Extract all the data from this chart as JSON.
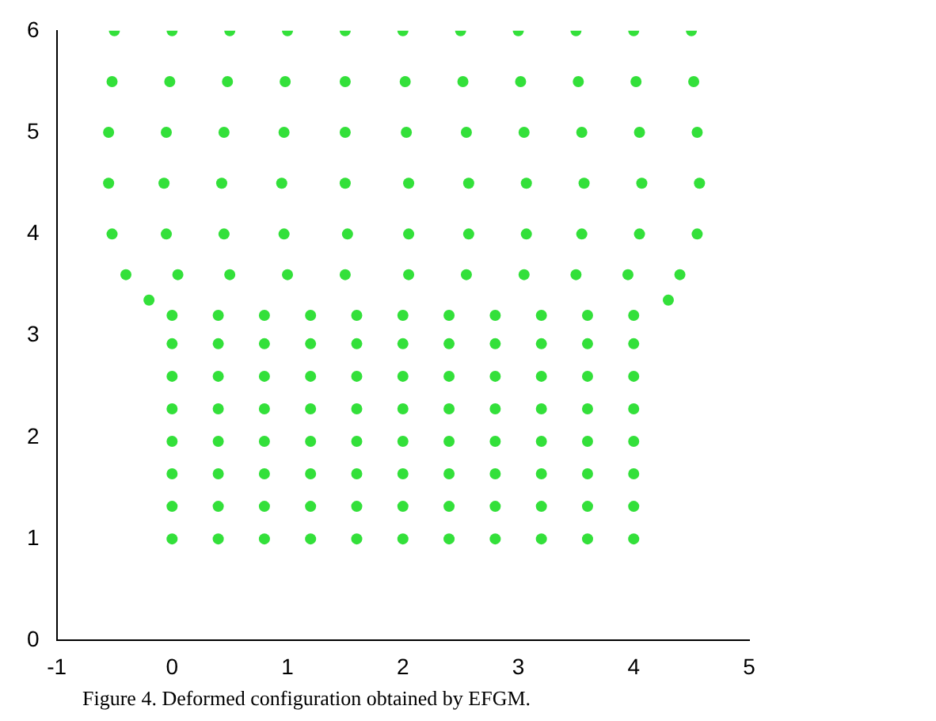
{
  "chart_data": {
    "type": "scatter",
    "annotations": [
      "Figure 4. Deformed configuration obtained by EFGM."
    ],
    "xlim": [
      -1,
      5
    ],
    "xticks": [
      -1,
      0,
      1,
      2,
      3,
      4,
      5
    ],
    "ylim": [
      0,
      6
    ],
    "yticks": [
      0,
      1,
      2,
      3,
      4,
      5,
      6
    ],
    "grid": false,
    "legend": false,
    "marker": "circle",
    "series": [
      {
        "color": "#33e03a",
        "x": [
          0,
          0.4,
          0.8,
          1.2,
          1.6,
          2,
          2.4,
          2.8,
          3.2,
          3.6,
          4,
          0,
          0.4,
          0.8,
          1.2,
          1.6,
          2,
          2.4,
          2.8,
          3.2,
          3.6,
          4,
          0,
          0.4,
          0.8,
          1.2,
          1.6,
          2,
          2.4,
          2.8,
          3.2,
          3.6,
          4,
          0,
          0.4,
          0.8,
          1.2,
          1.6,
          2,
          2.4,
          2.8,
          3.2,
          3.6,
          4,
          0,
          0.4,
          0.8,
          1.2,
          1.6,
          2,
          2.4,
          2.8,
          3.2,
          3.6,
          4,
          0,
          0.4,
          0.8,
          1.2,
          1.6,
          2,
          2.4,
          2.8,
          3.2,
          3.6,
          4,
          0,
          0.4,
          0.8,
          1.2,
          1.6,
          2,
          2.4,
          2.8,
          3.2,
          3.6,
          4,
          0,
          0.4,
          0.8,
          1.2,
          1.6,
          2,
          2.4,
          2.8,
          3.2,
          3.6,
          4,
          -0.5,
          0,
          0.5,
          1,
          1.5,
          2,
          2.5,
          3,
          3.5,
          4,
          4.5,
          -0.52,
          -0.02,
          0.48,
          0.98,
          1.5,
          2.02,
          2.52,
          3.02,
          3.52,
          4.02,
          4.52,
          -0.55,
          -0.05,
          0.45,
          0.97,
          1.5,
          2.03,
          2.55,
          3.05,
          3.55,
          4.05,
          4.55,
          -0.55,
          -0.07,
          0.43,
          0.95,
          1.5,
          2.05,
          2.57,
          3.07,
          3.57,
          4.07,
          4.57,
          -0.52,
          -0.05,
          0.45,
          0.97,
          1.52,
          2.05,
          2.57,
          3.07,
          3.55,
          4.05,
          4.55,
          -0.4,
          0.05,
          0.5,
          1,
          1.5,
          2.05,
          2.55,
          3.05,
          3.5,
          3.95,
          4.4,
          -0.2,
          4.3
        ],
        "values": [
          1,
          1,
          1,
          1,
          1,
          1,
          1,
          1,
          1,
          1,
          1,
          1.32,
          1.32,
          1.32,
          1.32,
          1.32,
          1.32,
          1.32,
          1.32,
          1.32,
          1.32,
          1.32,
          1.64,
          1.64,
          1.64,
          1.64,
          1.64,
          1.64,
          1.64,
          1.64,
          1.64,
          1.64,
          1.64,
          1.96,
          1.96,
          1.96,
          1.96,
          1.96,
          1.96,
          1.96,
          1.96,
          1.96,
          1.96,
          1.96,
          2.28,
          2.28,
          2.28,
          2.28,
          2.28,
          2.28,
          2.28,
          2.28,
          2.28,
          2.28,
          2.28,
          2.6,
          2.6,
          2.6,
          2.6,
          2.6,
          2.6,
          2.6,
          2.6,
          2.6,
          2.6,
          2.6,
          2.92,
          2.92,
          2.92,
          2.92,
          2.92,
          2.92,
          2.92,
          2.92,
          2.92,
          2.92,
          2.92,
          3.2,
          3.2,
          3.2,
          3.2,
          3.2,
          3.2,
          3.2,
          3.2,
          3.2,
          3.2,
          3.2,
          6,
          6,
          6,
          6,
          6,
          6,
          6,
          6,
          6,
          6,
          6,
          5.5,
          5.5,
          5.5,
          5.5,
          5.5,
          5.5,
          5.5,
          5.5,
          5.5,
          5.5,
          5.5,
          5,
          5,
          5,
          5,
          5,
          5,
          5,
          5,
          5,
          5,
          5,
          4.5,
          4.5,
          4.5,
          4.5,
          4.5,
          4.5,
          4.5,
          4.5,
          4.5,
          4.5,
          4.5,
          4,
          4,
          4,
          4,
          4,
          4,
          4,
          4,
          4,
          4,
          4,
          3.6,
          3.6,
          3.6,
          3.6,
          3.6,
          3.6,
          3.6,
          3.6,
          3.6,
          3.6,
          3.6,
          3.35,
          3.35
        ]
      }
    ]
  }
}
